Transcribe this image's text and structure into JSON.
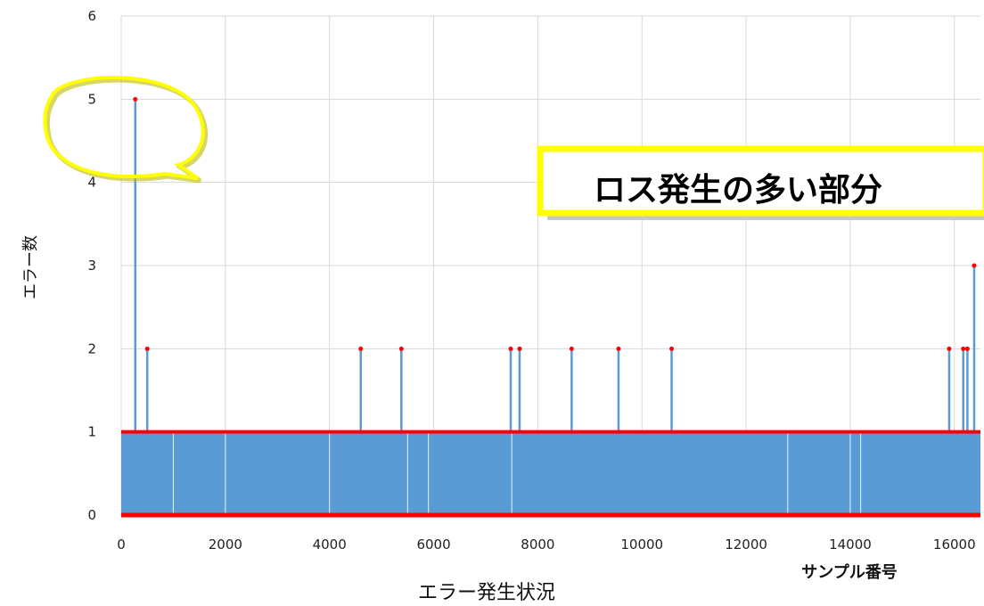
{
  "chart_data": {
    "type": "line",
    "title": "",
    "xlabel": "エラー発生状況",
    "ylabel": "エラー数",
    "x_unit_label": "サンプル番号",
    "xlim": [
      0,
      16500
    ],
    "ylim": [
      0,
      6
    ],
    "xticks": [
      0,
      2000,
      4000,
      6000,
      8000,
      10000,
      12000,
      14000,
      16000
    ],
    "yticks": [
      0,
      1,
      2,
      3,
      4,
      5,
      6
    ],
    "grid": true,
    "series": [
      {
        "color": "#5b9bd5",
        "marker_color": "#ff0000",
        "baseline": {
          "description_values": [
            0,
            1
          ],
          "x_range": [
            0,
            16500
          ]
        },
        "peaks": [
          {
            "x": 270,
            "y": 5
          },
          {
            "x": 500,
            "y": 2
          },
          {
            "x": 4600,
            "y": 2
          },
          {
            "x": 5380,
            "y": 2
          },
          {
            "x": 7480,
            "y": 2
          },
          {
            "x": 7650,
            "y": 2
          },
          {
            "x": 8650,
            "y": 2
          },
          {
            "x": 9550,
            "y": 2
          },
          {
            "x": 10570,
            "y": 2
          },
          {
            "x": 15900,
            "y": 2
          },
          {
            "x": 16170,
            "y": 2
          },
          {
            "x": 16250,
            "y": 2
          },
          {
            "x": 16380,
            "y": 3
          }
        ]
      }
    ],
    "annotations": [
      {
        "type": "callout",
        "text": "ロス発生の多い部分"
      },
      {
        "type": "speech-bubble-highlight",
        "target": "peak-5"
      }
    ]
  },
  "colors": {
    "fill": "#5b9bd5",
    "marker": "#ff0000",
    "callout_border": "#ffff00",
    "callout_shadow": "#c8c8c8",
    "grid": "#d9d9d9"
  }
}
